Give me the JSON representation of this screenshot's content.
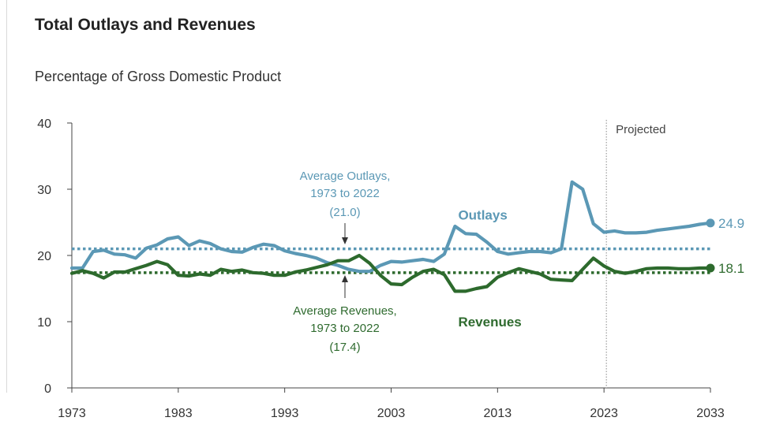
{
  "chart_data": {
    "type": "line",
    "title": "Total Outlays and Revenues",
    "subtitle": "Percentage of Gross Domestic Product",
    "ylim": [
      0,
      40
    ],
    "xlim": [
      1973,
      2033
    ],
    "y_ticks": [
      0,
      10,
      20,
      30,
      40
    ],
    "x_ticks": [
      1973,
      1983,
      1993,
      2003,
      2013,
      2023,
      2033
    ],
    "projection_start": 2023,
    "projection_label": "Projected",
    "colors": {
      "outlays": "#5b98b5",
      "revenues": "#2d6a2d"
    },
    "series": [
      {
        "name": "Outlays",
        "end_label": "24.9",
        "x": [
          1973,
          1974,
          1975,
          1976,
          1977,
          1978,
          1979,
          1980,
          1981,
          1982,
          1983,
          1984,
          1985,
          1986,
          1987,
          1988,
          1989,
          1990,
          1991,
          1992,
          1993,
          1994,
          1995,
          1996,
          1997,
          1998,
          1999,
          2000,
          2001,
          2002,
          2003,
          2004,
          2005,
          2006,
          2007,
          2008,
          2009,
          2010,
          2011,
          2012,
          2013,
          2014,
          2015,
          2016,
          2017,
          2018,
          2019,
          2020,
          2021,
          2022,
          2023,
          2024,
          2025,
          2026,
          2027,
          2028,
          2029,
          2030,
          2031,
          2032,
          2033
        ],
        "values": [
          18.1,
          18.1,
          20.6,
          20.8,
          20.2,
          20.1,
          19.6,
          21.1,
          21.6,
          22.5,
          22.8,
          21.5,
          22.2,
          21.8,
          21.0,
          20.6,
          20.5,
          21.2,
          21.7,
          21.5,
          20.7,
          20.3,
          20.0,
          19.6,
          18.9,
          18.5,
          17.9,
          17.6,
          17.6,
          18.5,
          19.1,
          19.0,
          19.2,
          19.4,
          19.1,
          20.2,
          24.4,
          23.3,
          23.2,
          22.0,
          20.6,
          20.2,
          20.4,
          20.6,
          20.6,
          20.4,
          21.0,
          31.1,
          30.0,
          24.8,
          23.5,
          23.7,
          23.4,
          23.4,
          23.5,
          23.8,
          24.0,
          24.2,
          24.4,
          24.7,
          24.9
        ]
      },
      {
        "name": "Revenues",
        "end_label": "18.1",
        "x": [
          1973,
          1974,
          1975,
          1976,
          1977,
          1978,
          1979,
          1980,
          1981,
          1982,
          1983,
          1984,
          1985,
          1986,
          1987,
          1988,
          1989,
          1990,
          1991,
          1992,
          1993,
          1994,
          1995,
          1996,
          1997,
          1998,
          1999,
          2000,
          2001,
          2002,
          2003,
          2004,
          2005,
          2006,
          2007,
          2008,
          2009,
          2010,
          2011,
          2012,
          2013,
          2014,
          2015,
          2016,
          2017,
          2018,
          2019,
          2020,
          2021,
          2022,
          2023,
          2024,
          2025,
          2026,
          2027,
          2028,
          2029,
          2030,
          2031,
          2032,
          2033
        ],
        "values": [
          17.3,
          17.7,
          17.3,
          16.6,
          17.5,
          17.5,
          18.0,
          18.5,
          19.1,
          18.6,
          17.0,
          16.9,
          17.2,
          17.0,
          17.9,
          17.6,
          17.8,
          17.4,
          17.3,
          17.0,
          17.0,
          17.5,
          17.8,
          18.2,
          18.6,
          19.2,
          19.2,
          20.0,
          18.8,
          17.0,
          15.7,
          15.6,
          16.7,
          17.6,
          17.9,
          17.1,
          14.6,
          14.6,
          15.0,
          15.3,
          16.7,
          17.4,
          18.0,
          17.6,
          17.2,
          16.4,
          16.3,
          16.2,
          17.9,
          19.6,
          18.4,
          17.6,
          17.3,
          17.6,
          18.0,
          18.1,
          18.1,
          18.0,
          18.0,
          18.1,
          18.1
        ]
      }
    ],
    "averages": [
      {
        "series": "Outlays",
        "value": 21.0,
        "lines": [
          "Average Outlays,",
          "1973 to 2022",
          "(21.0)"
        ]
      },
      {
        "series": "Revenues",
        "value": 17.4,
        "lines": [
          "Average Revenues,",
          "1973 to 2022",
          "(17.4)"
        ]
      }
    ]
  }
}
